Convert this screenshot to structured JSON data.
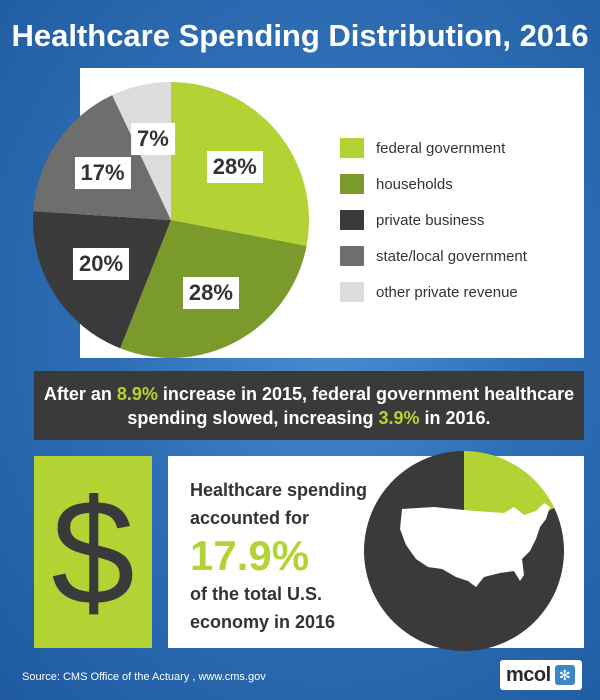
{
  "title": "Healthcare Spending Distribution, 2016",
  "colors": {
    "federal": "#b3d335",
    "households": "#7a9a2b",
    "private_business": "#3a3a3a",
    "state_local": "#6e6e6e",
    "other_private": "#dddddd",
    "accent": "#b3d335",
    "background": "#2f6fb6"
  },
  "chart_data": [
    {
      "type": "pie",
      "title": "Healthcare Spending Distribution, 2016",
      "slices": [
        {
          "label": "federal government",
          "value": 28,
          "display": "28%",
          "color": "#b3d335"
        },
        {
          "label": "households",
          "value": 28,
          "display": "28%",
          "color": "#7a9a2b"
        },
        {
          "label": "private business",
          "value": 20,
          "display": "20%",
          "color": "#3a3a3a"
        },
        {
          "label": "state/local government",
          "value": 17,
          "display": "17%",
          "color": "#6e6e6e"
        },
        {
          "label": "other private revenue",
          "value": 7,
          "display": "7%",
          "color": "#dddddd"
        }
      ],
      "legend_placement": "right"
    },
    {
      "type": "pie",
      "title": "",
      "slices": [
        {
          "label": "",
          "value": 17.9,
          "color": "#b3d335"
        },
        {
          "label": "",
          "value": 82.1,
          "color": "#3a3a3a"
        }
      ]
    }
  ],
  "note": {
    "part1": "After an ",
    "value1": "8.9%",
    "part2": " increase in 2015, federal government healthcare spending slowed, increasing ",
    "value2": "3.9%",
    "part3": " in 2016."
  },
  "dollar_symbol": "$",
  "economy": {
    "line1": "Healthcare spending",
    "line2": "accounted for",
    "big": "17.9%",
    "line3": "of the total U.S.",
    "line4": "economy in 2016"
  },
  "source": "Source:   CMS Office of the Actuary , www.cms.gov",
  "logo": {
    "text": "mcol",
    "mark_icon": "snowflake-icon",
    "mark": "✻"
  },
  "map_icon": "usa-map-icon"
}
